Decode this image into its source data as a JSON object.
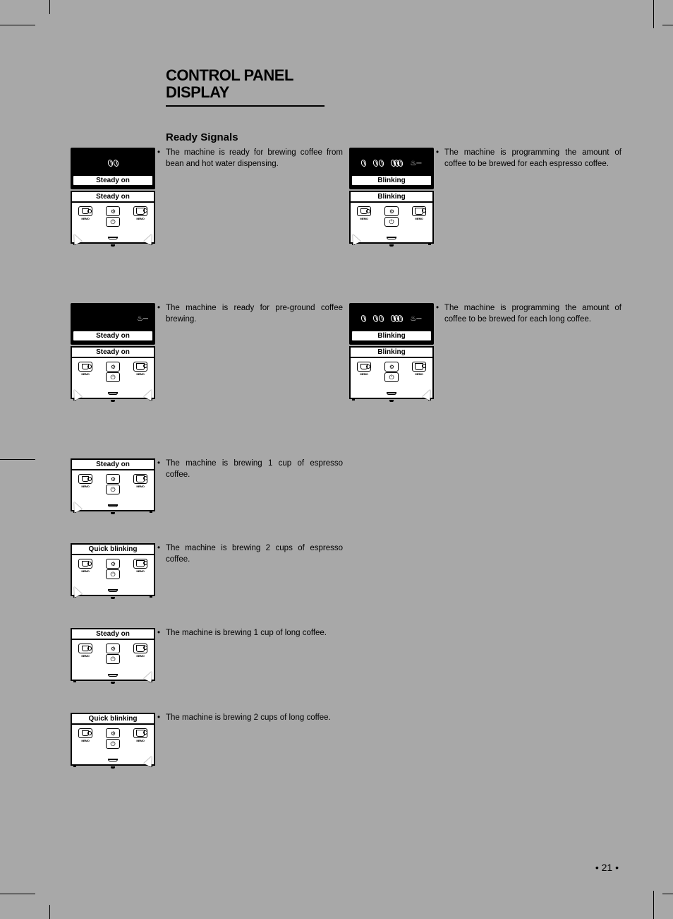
{
  "title_line1": "CONTROL PANEL",
  "title_line2": "DISPLAY",
  "subtitle": "Ready Signals",
  "page_number": "• 21 •",
  "labels": {
    "steady_on": "Steady on",
    "blinking": "Blinking",
    "quick_blinking": "Quick blinking",
    "memo": "MEMO"
  },
  "left_column": [
    {
      "display_label": "Steady on",
      "panel_label": "Steady on",
      "show_display": true,
      "desc": "The machine is ready for brewing coffee from bean and hot water dispensing.",
      "arrows": "both"
    },
    {
      "display_label": "Steady on",
      "panel_label": "Steady on",
      "show_display": true,
      "desc": "The machine is ready for pre-ground coffee brewing.",
      "arrows": "both"
    },
    {
      "display_label": null,
      "panel_label": "Steady on",
      "show_display": false,
      "desc": "The machine is brewing 1 cup of espresso coffee.",
      "arrows": "left"
    },
    {
      "display_label": null,
      "panel_label": "Quick blinking",
      "show_display": false,
      "desc": "The machine is brewing 2 cups of espresso coffee.",
      "arrows": "left"
    },
    {
      "display_label": null,
      "panel_label": "Steady on",
      "show_display": false,
      "desc": "The machine is brewing 1 cup of long coffee.",
      "arrows": "right"
    },
    {
      "display_label": null,
      "panel_label": "Quick blinking",
      "show_display": false,
      "desc": "The machine is brewing 2 cups of long coffee.",
      "arrows": "right"
    }
  ],
  "right_column": [
    {
      "display_label": "Blinking",
      "panel_label": "Blinking",
      "show_display": true,
      "desc": "The machine is programming the amount of coffee to be brewed for each espresso coffee.",
      "arrows": "left"
    },
    {
      "display_label": "Blinking",
      "panel_label": "Blinking",
      "show_display": true,
      "desc": "The machine is programming the amount of coffee to be brewed for each long coffee.",
      "arrows": "right"
    }
  ],
  "colors": {
    "page_bg": "#a8a8a8",
    "panel_black": "#000000",
    "panel_white": "#ffffff"
  }
}
